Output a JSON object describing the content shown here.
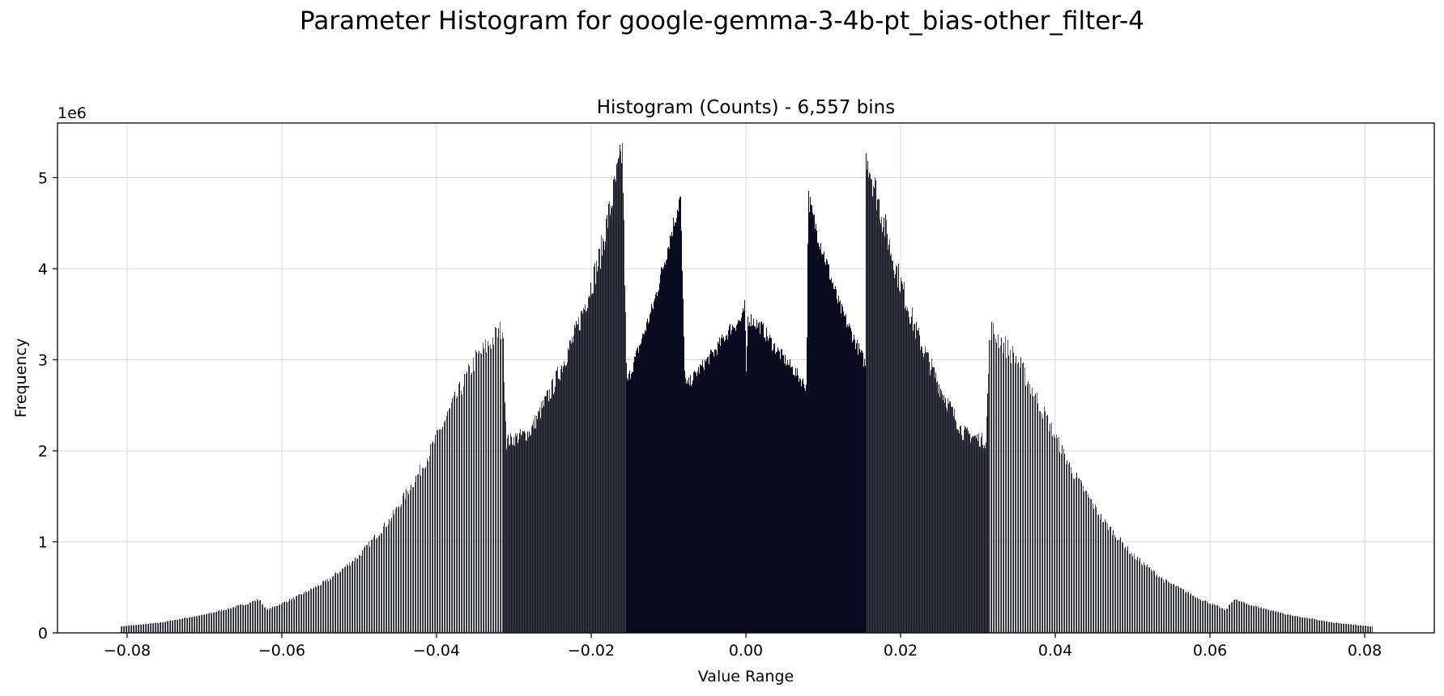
{
  "figure": {
    "suptitle": "Parameter Histogram for google-gemma-3-4b-pt_bias-other_filter-4"
  },
  "chart_data": {
    "type": "bar",
    "title": "Histogram (Counts) - 6,557 bins",
    "xlabel": "Value Range",
    "ylabel": "Frequency",
    "y_scale_label": "1e6",
    "xlim": [
      -0.089,
      0.089
    ],
    "ylim": [
      0,
      5600000
    ],
    "xticks": [
      -0.08,
      -0.06,
      -0.04,
      -0.02,
      0.0,
      0.02,
      0.04,
      0.06,
      0.08
    ],
    "xtick_labels": [
      "−0.08",
      "−0.06",
      "−0.04",
      "−0.02",
      "0.00",
      "0.02",
      "0.04",
      "0.06",
      "0.08"
    ],
    "yticks": [
      0,
      1000000,
      2000000,
      3000000,
      4000000,
      5000000
    ],
    "ytick_labels": [
      "0",
      "1",
      "2",
      "3",
      "4",
      "5"
    ],
    "grid": true,
    "bar_color": "#0a0a1e",
    "profile_x": [
      -0.081,
      -0.076,
      -0.07,
      -0.065,
      -0.063,
      -0.062,
      -0.058,
      -0.054,
      -0.05,
      -0.046,
      -0.042,
      -0.038,
      -0.035,
      -0.0315,
      -0.031,
      -0.028,
      -0.025,
      -0.022,
      -0.019,
      -0.016,
      -0.0155,
      -0.0154,
      -0.012,
      -0.0085,
      -0.008,
      -0.0078,
      -0.006,
      -0.004,
      -0.002,
      -0.0005,
      -0.0002,
      0.0,
      0.0002,
      0.0005,
      0.002,
      0.004,
      0.006,
      0.0078,
      0.008,
      0.0085,
      0.012,
      0.0154,
      0.0155,
      0.016,
      0.019,
      0.022,
      0.025,
      0.028,
      0.031,
      0.0315,
      0.035,
      0.038,
      0.042,
      0.046,
      0.05,
      0.054,
      0.058,
      0.062,
      0.063,
      0.065,
      0.07,
      0.076,
      0.081
    ],
    "profile_y": [
      70000,
      110000,
      200000,
      310000,
      370000,
      250000,
      400000,
      580000,
      850000,
      1250000,
      1800000,
      2500000,
      3000000,
      3350000,
      2100000,
      2200000,
      2700000,
      3300000,
      4100000,
      5300000,
      2950000,
      2750000,
      3600000,
      4800000,
      3000000,
      2700000,
      2900000,
      3100000,
      3350000,
      3450000,
      3600000,
      2850000,
      3450000,
      3450000,
      3350000,
      3100000,
      2900000,
      2700000,
      4800000,
      4600000,
      3600000,
      2950000,
      5300000,
      5100000,
      4100000,
      3300000,
      2700000,
      2200000,
      2100000,
      3350000,
      3000000,
      2500000,
      1800000,
      1250000,
      850000,
      580000,
      400000,
      250000,
      370000,
      310000,
      200000,
      110000,
      70000
    ],
    "bar_count": 6557
  }
}
